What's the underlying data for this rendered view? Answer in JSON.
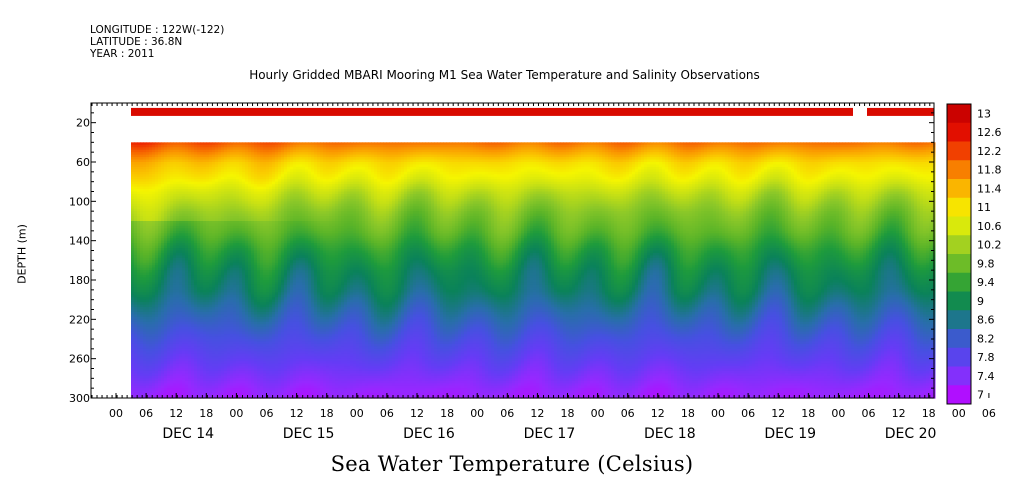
{
  "meta": {
    "longitude": "LONGITUDE : 122W(-122)",
    "latitude": "LATITUDE : 36.8N",
    "year": "YEAR : 2011"
  },
  "chart_data": {
    "type": "heatmap",
    "title": "Hourly Gridded MBARI Mooring M1 Sea Water Temperature and Salinity Observations",
    "xlabel": "Sea Water Temperature (Celsius)",
    "ylabel": "DEPTH (m)",
    "y_axis": {
      "ticks": [
        20,
        60,
        100,
        140,
        180,
        220,
        260,
        300
      ],
      "ylim": [
        300,
        0
      ],
      "inverted": true
    },
    "x_axis": {
      "hour_ticks": [
        "00",
        "06",
        "12",
        "18",
        "00",
        "06",
        "12",
        "18",
        "00",
        "06",
        "12",
        "18",
        "00",
        "06",
        "12",
        "18",
        "00",
        "06",
        "12",
        "18",
        "00",
        "06",
        "12",
        "18",
        "00",
        "06",
        "12",
        "18",
        "00",
        "06",
        "12",
        "18"
      ],
      "day_labels": [
        "DEC 14",
        "DEC 15",
        "DEC 16",
        "DEC 17",
        "DEC 18",
        "DEC 19",
        "DEC 20"
      ],
      "range": [
        "DEC 13 23h",
        "DEC 20 22h"
      ]
    },
    "colorbar": {
      "ticks": [
        "13",
        "12.6",
        "12.2",
        "11.8",
        "11.4",
        "11",
        "10.6",
        "10.2",
        "9.8",
        "9.4",
        "9",
        "8.6",
        "8.2",
        "7.8",
        "7.4",
        "7"
      ],
      "range": [
        7,
        13.2
      ]
    },
    "surface_layer": {
      "depth_m": 10,
      "value": 12.9
    },
    "profile_mean": [
      {
        "depth": 40,
        "value": 12.0
      },
      {
        "depth": 50,
        "value": 11.6
      },
      {
        "depth": 60,
        "value": 11.2
      },
      {
        "depth": 75,
        "value": 10.9
      },
      {
        "depth": 90,
        "value": 10.5
      },
      {
        "depth": 110,
        "value": 10.1
      },
      {
        "depth": 130,
        "value": 9.8
      },
      {
        "depth": 150,
        "value": 9.4
      },
      {
        "depth": 170,
        "value": 9.1
      },
      {
        "depth": 190,
        "value": 8.9
      },
      {
        "depth": 210,
        "value": 8.6
      },
      {
        "depth": 230,
        "value": 8.3
      },
      {
        "depth": 250,
        "value": 8.0
      },
      {
        "depth": 270,
        "value": 7.7
      },
      {
        "depth": 290,
        "value": 7.4
      },
      {
        "depth": 300,
        "value": 7.3
      }
    ]
  }
}
